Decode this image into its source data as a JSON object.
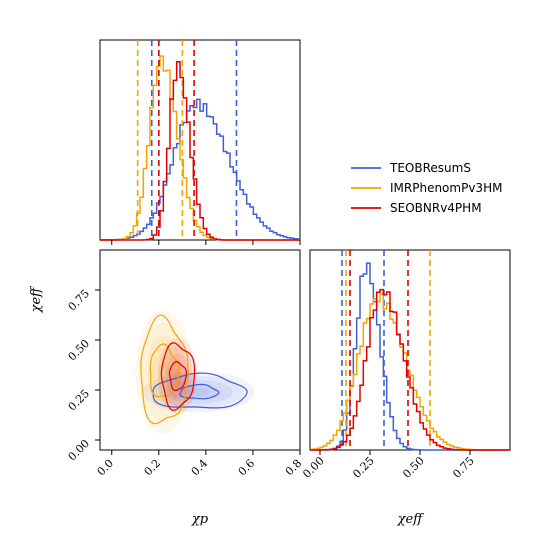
{
  "chart_data": {
    "type": "corner",
    "colors": {
      "TEOBResumS": "#3f5fd8",
      "IMRPhenomPv3HM": "#f5a300",
      "SEOBNRv4PHM": "#e00000"
    },
    "legend": {
      "placement": "right",
      "entries": [
        "TEOBResumS",
        "IMRPhenomPv3HM",
        "SEOBNRv4PHM"
      ]
    },
    "chi_p_hist": {
      "xlim": [
        -0.05,
        0.8
      ],
      "xticks": [
        0.0,
        0.2,
        0.4,
        0.6,
        0.8
      ],
      "xtick_labels": [
        "0.0",
        "0.2",
        "0.4",
        "0.6",
        "0.8"
      ],
      "xlabel": "χp",
      "series": [
        {
          "name": "TEOBResumS",
          "peak": 0.36,
          "sigma": 0.11,
          "height": 0.68,
          "quantiles": [
            0.17,
            0.53
          ]
        },
        {
          "name": "IMRPhenomPv3HM",
          "peak": 0.21,
          "sigma": 0.055,
          "height": 0.9,
          "quantiles": [
            0.11,
            0.3
          ]
        },
        {
          "name": "SEOBNRv4PHM",
          "peak": 0.28,
          "sigma": 0.04,
          "height": 0.87,
          "quantiles": [
            0.2,
            0.35
          ]
        }
      ]
    },
    "chi_eff_hist": {
      "xlim": [
        -0.05,
        0.95
      ],
      "xticks": [
        0.0,
        0.25,
        0.5,
        0.75
      ],
      "xtick_labels": [
        "0.00",
        "0.25",
        "0.50",
        "0.75"
      ],
      "xlabel": "χeff",
      "series": [
        {
          "name": "TEOBResumS",
          "peak": 0.23,
          "sigma": 0.055,
          "height": 0.92,
          "quantiles": [
            0.11,
            0.32
          ]
        },
        {
          "name": "IMRPhenomPv3HM",
          "peak": 0.29,
          "sigma": 0.11,
          "height": 0.76,
          "quantiles": [
            0.13,
            0.55
          ]
        },
        {
          "name": "SEOBNRv4PHM",
          "peak": 0.31,
          "sigma": 0.085,
          "height": 0.8,
          "quantiles": [
            0.15,
            0.44
          ]
        }
      ]
    },
    "joint": {
      "xlim": [
        -0.05,
        0.8
      ],
      "ylim": [
        -0.05,
        0.95
      ],
      "xticks": [
        0.0,
        0.2,
        0.4,
        0.6,
        0.8
      ],
      "xtick_labels": [
        "0.0",
        "0.2",
        "0.4",
        "0.6",
        "0.8"
      ],
      "yticks": [
        0.0,
        0.25,
        0.5,
        0.75
      ],
      "ytick_labels": [
        "0.00",
        "0.25",
        "0.50",
        "0.75"
      ],
      "xlabel": "χp",
      "ylabel": "χeff",
      "contours": [
        {
          "name": "TEOBResumS",
          "cx": 0.37,
          "cy": 0.24,
          "levels": [
            [
              0.08,
              0.035
            ],
            [
              0.2,
              0.085
            ]
          ]
        },
        {
          "name": "IMRPhenomPv3HM",
          "cx": 0.22,
          "cy": 0.34,
          "levels": [
            [
              0.06,
              0.13
            ],
            [
              0.1,
              0.26
            ]
          ]
        },
        {
          "name": "SEOBNRv4PHM",
          "cx": 0.28,
          "cy": 0.32,
          "levels": [
            [
              0.035,
              0.07
            ],
            [
              0.07,
              0.16
            ]
          ]
        }
      ]
    }
  }
}
